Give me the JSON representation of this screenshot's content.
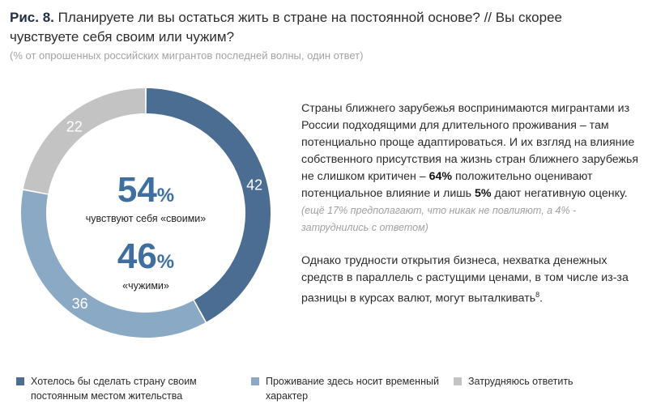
{
  "header": {
    "figure_label": "Рис. 8.",
    "title": "Планируете ли вы остаться жить в стране на постоянной основе? // Вы скорее чувствуете себя своим или чужим?",
    "subtitle": "(% от опрошенных российских мигрантов последней волны, один ответ)"
  },
  "chart_data": {
    "type": "pie",
    "variant": "donut",
    "slices": [
      {
        "name": "Хотелось бы сделать страну своим постоянным местом жительства",
        "value": 42,
        "label": "42",
        "color": "#4a6d91"
      },
      {
        "name": "Проживание здесь носит временный характер",
        "value": 36,
        "label": "36",
        "color": "#8aa9c4"
      },
      {
        "name": "Затрудняюсь ответить",
        "value": 22,
        "label": "22",
        "color": "#c3c3c3"
      }
    ],
    "center": {
      "primary": {
        "value": "54",
        "unit": "%",
        "label": "чувствуют себя «своими»"
      },
      "secondary": {
        "value": "46",
        "unit": "%",
        "label": "«чужими»"
      }
    },
    "accent_color": "#3f6fa0",
    "legend_position": "bottom"
  },
  "text": {
    "p1_a": "Страны ближнего зарубежья воспринимаются мигрантами из России подходящими для длительного проживания – там потенциально проще адаптироваться. И их взгляд на влияние собственного присутствия на жизнь стран ближнего зарубежья не слишком критичен – ",
    "p1_b": "64%",
    "p1_c": " положительно оценивают потенциальное влияние и лишь ",
    "p1_d": "5%",
    "p1_e": " дают негативную оценку.",
    "p1_note": " (ещё 17% предполагают, что никак не повлияют, а 4% - затруднились с ответом)",
    "p2": "Однако трудности открытия бизнеса, нехватка денежных средств в параллель с растущими ценами, в том числе из-за разницы в курсах валют, могут выталкивать",
    "p2_sup": "8",
    "p2_end": "."
  }
}
